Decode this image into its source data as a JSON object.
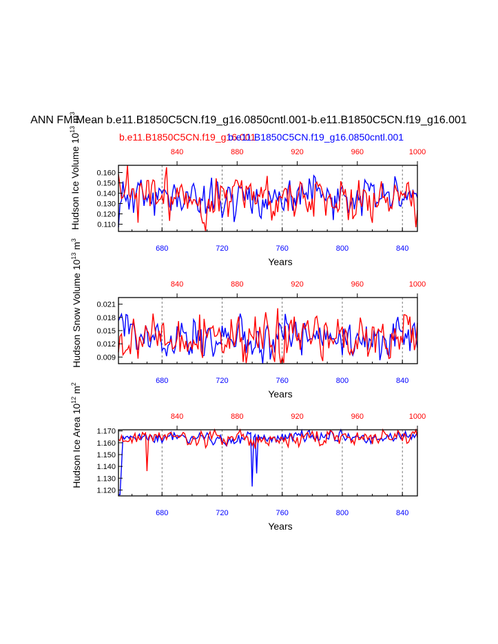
{
  "page": {
    "title": "ANN FM Mean b.e11.B1850C5CN.f19_g16.0850cntl.001-b.e11.B1850C5CN.f19_g16.001",
    "legend_red": "b.e11.B1850C5CN.f19_g16.001",
    "legend_blue": "b.e11.B1850C5CN.f19_g16.0850cntl.001"
  },
  "colors": {
    "red": "#ff0000",
    "blue": "#0000ff"
  },
  "chart_data": [
    {
      "type": "line",
      "ylabel": "Hudson Ice Volume 10",
      "ylabel_exp": "13",
      "ylabel_unit": " m",
      "ylabel_unit_exp": "3",
      "xlabel": "Years",
      "xlim_bottom": [
        651,
        850
      ],
      "xticks_bottom": [
        "680",
        "720",
        "760",
        "800",
        "840"
      ],
      "xlim_top": [
        801,
        1000
      ],
      "xticks_top": [
        "840",
        "880",
        "920",
        "960",
        "1000"
      ],
      "ylim": [
        0.103,
        0.167
      ],
      "yticks": [
        "0.110",
        "0.120",
        "0.130",
        "0.140",
        "0.150",
        "0.160"
      ],
      "series": [
        {
          "name": "b.e11.B1850C5CN.f19_g16.0850cntl.001",
          "color": "blue",
          "mean": 0.136,
          "amp": 0.009,
          "seed": 11,
          "start": 0.107
        },
        {
          "name": "b.e11.B1850C5CN.f19_g16.001",
          "color": "red",
          "mean": 0.137,
          "amp": 0.011,
          "seed": 23
        }
      ]
    },
    {
      "type": "line",
      "ylabel": "Hudson Snow Volume 10",
      "ylabel_exp": "13",
      "ylabel_unit": " m",
      "ylabel_unit_exp": "3",
      "xlabel": "Years",
      "xlim_bottom": [
        651,
        850
      ],
      "xticks_bottom": [
        "680",
        "720",
        "760",
        "800",
        "840"
      ],
      "xlim_top": [
        801,
        1000
      ],
      "xticks_top": [
        "840",
        "880",
        "920",
        "960",
        "1000"
      ],
      "ylim": [
        0.0075,
        0.0225
      ],
      "yticks": [
        "0.009",
        "0.012",
        "0.015",
        "0.018",
        "0.021"
      ],
      "series": [
        {
          "name": "b.e11.B1850C5CN.f19_g16.0850cntl.001",
          "color": "blue",
          "mean": 0.0135,
          "amp": 0.0023,
          "seed": 37
        },
        {
          "name": "b.e11.B1850C5CN.f19_g16.001",
          "color": "red",
          "mean": 0.0133,
          "amp": 0.0025,
          "seed": 53
        }
      ]
    },
    {
      "type": "line",
      "ylabel": "Hudson Ice Area 10",
      "ylabel_exp": "12",
      "ylabel_unit": " m",
      "ylabel_unit_exp": "2",
      "xlabel": "Years",
      "xlim_bottom": [
        651,
        850
      ],
      "xticks_bottom": [
        "680",
        "720",
        "760",
        "800",
        "840"
      ],
      "xlim_top": [
        801,
        1000
      ],
      "xticks_top": [
        "840",
        "880",
        "920",
        "960",
        "1000"
      ],
      "ylim": [
        1.115,
        1.171
      ],
      "yticks": [
        "1.120",
        "1.130",
        "1.140",
        "1.150",
        "1.160",
        "1.170"
      ],
      "series": [
        {
          "name": "b.e11.B1850C5CN.f19_g16.0850cntl.001",
          "color": "blue",
          "mean": 1.1645,
          "amp": 0.0025,
          "seed": 71,
          "start": 1.116,
          "dips": [
            [
              740,
              1.123
            ],
            [
              743,
              1.134
            ],
            [
              652,
              1.116
            ],
            [
              653,
              1.14
            ]
          ]
        },
        {
          "name": "b.e11.B1850C5CN.f19_g16.001",
          "color": "red",
          "mean": 1.164,
          "amp": 0.003,
          "seed": 89,
          "dips": [
            [
              670,
              1.136
            ],
            [
              742,
              1.155
            ]
          ]
        }
      ]
    }
  ]
}
